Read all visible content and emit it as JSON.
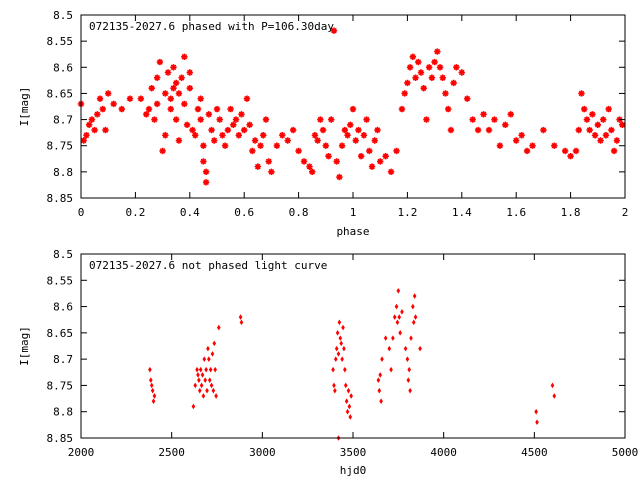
{
  "chart_data": [
    {
      "type": "scatter",
      "title": "072135-2027.6 phased with P=106.30day",
      "xlabel": "phase",
      "ylabel": "I[mag]",
      "xlim": [
        0,
        2
      ],
      "ylim": [
        8.5,
        8.85
      ],
      "y_inverted": true,
      "x_ticks": [
        0,
        0.2,
        0.4,
        0.6,
        0.8,
        1,
        1.2,
        1.4,
        1.6,
        1.8,
        2
      ],
      "x_tick_labels": [
        "0",
        "0.2",
        "0.4",
        "0.6",
        "0.8",
        "1",
        "1.2",
        "1.4",
        "1.6",
        "1.8",
        "2"
      ],
      "y_ticks": [
        8.5,
        8.55,
        8.6,
        8.65,
        8.7,
        8.75,
        8.8,
        8.85
      ],
      "y_tick_labels": [
        "8.5",
        "8.55",
        "8.6",
        "8.65",
        "8.7",
        "8.75",
        "8.8",
        "8.85"
      ],
      "marker_color": "#ff0000",
      "marker": "star",
      "points": [
        [
          0.0,
          8.67
        ],
        [
          0.01,
          8.74
        ],
        [
          0.02,
          8.73
        ],
        [
          0.03,
          8.71
        ],
        [
          0.04,
          8.7
        ],
        [
          0.05,
          8.72
        ],
        [
          0.06,
          8.69
        ],
        [
          0.07,
          8.66
        ],
        [
          0.08,
          8.68
        ],
        [
          0.09,
          8.72
        ],
        [
          0.1,
          8.65
        ],
        [
          0.12,
          8.67
        ],
        [
          0.15,
          8.68
        ],
        [
          0.18,
          8.66
        ],
        [
          0.22,
          8.66
        ],
        [
          0.24,
          8.69
        ],
        [
          0.25,
          8.68
        ],
        [
          0.26,
          8.64
        ],
        [
          0.27,
          8.7
        ],
        [
          0.28,
          8.67
        ],
        [
          0.28,
          8.62
        ],
        [
          0.29,
          8.59
        ],
        [
          0.3,
          8.76
        ],
        [
          0.31,
          8.73
        ],
        [
          0.31,
          8.65
        ],
        [
          0.32,
          8.61
        ],
        [
          0.33,
          8.66
        ],
        [
          0.33,
          8.68
        ],
        [
          0.34,
          8.64
        ],
        [
          0.34,
          8.6
        ],
        [
          0.35,
          8.63
        ],
        [
          0.35,
          8.7
        ],
        [
          0.36,
          8.74
        ],
        [
          0.36,
          8.65
        ],
        [
          0.37,
          8.62
        ],
        [
          0.38,
          8.58
        ],
        [
          0.38,
          8.67
        ],
        [
          0.39,
          8.71
        ],
        [
          0.4,
          8.64
        ],
        [
          0.4,
          8.61
        ],
        [
          0.41,
          8.72
        ],
        [
          0.42,
          8.73
        ],
        [
          0.43,
          8.68
        ],
        [
          0.44,
          8.66
        ],
        [
          0.44,
          8.7
        ],
        [
          0.45,
          8.75
        ],
        [
          0.45,
          8.78
        ],
        [
          0.46,
          8.8
        ],
        [
          0.46,
          8.82
        ],
        [
          0.47,
          8.69
        ],
        [
          0.48,
          8.72
        ],
        [
          0.49,
          8.74
        ],
        [
          0.5,
          8.68
        ],
        [
          0.51,
          8.7
        ],
        [
          0.52,
          8.73
        ],
        [
          0.53,
          8.75
        ],
        [
          0.54,
          8.72
        ],
        [
          0.55,
          8.68
        ],
        [
          0.56,
          8.71
        ],
        [
          0.57,
          8.7
        ],
        [
          0.58,
          8.73
        ],
        [
          0.59,
          8.69
        ],
        [
          0.6,
          8.72
        ],
        [
          0.61,
          8.66
        ],
        [
          0.62,
          8.71
        ],
        [
          0.63,
          8.76
        ],
        [
          0.64,
          8.74
        ],
        [
          0.65,
          8.79
        ],
        [
          0.66,
          8.75
        ],
        [
          0.67,
          8.73
        ],
        [
          0.68,
          8.7
        ],
        [
          0.69,
          8.78
        ],
        [
          0.7,
          8.8
        ],
        [
          0.72,
          8.75
        ],
        [
          0.74,
          8.73
        ],
        [
          0.76,
          8.74
        ],
        [
          0.78,
          8.72
        ],
        [
          0.8,
          8.76
        ],
        [
          0.82,
          8.78
        ],
        [
          0.84,
          8.79
        ],
        [
          0.85,
          8.8
        ],
        [
          0.86,
          8.73
        ],
        [
          0.87,
          8.74
        ],
        [
          0.88,
          8.7
        ],
        [
          0.89,
          8.72
        ],
        [
          0.9,
          8.75
        ],
        [
          0.91,
          8.77
        ],
        [
          0.92,
          8.7
        ],
        [
          0.93,
          8.53
        ],
        [
          0.94,
          8.78
        ],
        [
          0.95,
          8.81
        ],
        [
          0.96,
          8.75
        ],
        [
          0.97,
          8.72
        ],
        [
          0.98,
          8.73
        ],
        [
          0.99,
          8.71
        ],
        [
          1.0,
          8.68
        ],
        [
          1.01,
          8.74
        ],
        [
          1.02,
          8.72
        ],
        [
          1.03,
          8.77
        ],
        [
          1.04,
          8.73
        ],
        [
          1.05,
          8.7
        ],
        [
          1.06,
          8.76
        ],
        [
          1.07,
          8.79
        ],
        [
          1.08,
          8.74
        ],
        [
          1.09,
          8.72
        ],
        [
          1.1,
          8.78
        ],
        [
          1.12,
          8.77
        ],
        [
          1.14,
          8.8
        ],
        [
          1.16,
          8.76
        ],
        [
          1.18,
          8.68
        ],
        [
          1.19,
          8.65
        ],
        [
          1.2,
          8.63
        ],
        [
          1.21,
          8.6
        ],
        [
          1.22,
          8.58
        ],
        [
          1.23,
          8.62
        ],
        [
          1.24,
          8.59
        ],
        [
          1.25,
          8.61
        ],
        [
          1.26,
          8.64
        ],
        [
          1.27,
          8.7
        ],
        [
          1.28,
          8.6
        ],
        [
          1.29,
          8.62
        ],
        [
          1.3,
          8.59
        ],
        [
          1.31,
          8.57
        ],
        [
          1.32,
          8.6
        ],
        [
          1.33,
          8.62
        ],
        [
          1.34,
          8.65
        ],
        [
          1.35,
          8.68
        ],
        [
          1.36,
          8.72
        ],
        [
          1.37,
          8.63
        ],
        [
          1.38,
          8.6
        ],
        [
          1.4,
          8.61
        ],
        [
          1.42,
          8.66
        ],
        [
          1.44,
          8.7
        ],
        [
          1.46,
          8.72
        ],
        [
          1.48,
          8.69
        ],
        [
          1.5,
          8.72
        ],
        [
          1.52,
          8.7
        ],
        [
          1.54,
          8.75
        ],
        [
          1.56,
          8.71
        ],
        [
          1.58,
          8.69
        ],
        [
          1.6,
          8.74
        ],
        [
          1.62,
          8.73
        ],
        [
          1.64,
          8.76
        ],
        [
          1.66,
          8.75
        ],
        [
          1.7,
          8.72
        ],
        [
          1.74,
          8.75
        ],
        [
          1.78,
          8.76
        ],
        [
          1.8,
          8.77
        ],
        [
          1.82,
          8.76
        ],
        [
          1.83,
          8.72
        ],
        [
          1.84,
          8.65
        ],
        [
          1.85,
          8.68
        ],
        [
          1.86,
          8.7
        ],
        [
          1.87,
          8.72
        ],
        [
          1.88,
          8.69
        ],
        [
          1.89,
          8.73
        ],
        [
          1.9,
          8.71
        ],
        [
          1.91,
          8.74
        ],
        [
          1.92,
          8.7
        ],
        [
          1.93,
          8.73
        ],
        [
          1.94,
          8.68
        ],
        [
          1.95,
          8.72
        ],
        [
          1.96,
          8.76
        ],
        [
          1.97,
          8.74
        ],
        [
          1.98,
          8.7
        ],
        [
          1.99,
          8.71
        ]
      ]
    },
    {
      "type": "scatter",
      "title": "072135-2027.6 not phased light curve",
      "xlabel": "hjd0",
      "ylabel": "I[mag]",
      "xlim": [
        2000,
        5000
      ],
      "ylim": [
        8.5,
        8.85
      ],
      "y_inverted": true,
      "x_ticks": [
        2000,
        2500,
        3000,
        3500,
        4000,
        4500,
        5000
      ],
      "x_tick_labels": [
        "2000",
        "2500",
        "3000",
        "3500",
        "4000",
        "4500",
        "5000"
      ],
      "y_ticks": [
        8.5,
        8.55,
        8.6,
        8.65,
        8.7,
        8.75,
        8.8,
        8.85
      ],
      "y_tick_labels": [
        "8.5",
        "8.55",
        "8.6",
        "8.65",
        "8.7",
        "8.75",
        "8.8",
        "8.85"
      ],
      "marker_color": "#ff0000",
      "marker": "diamond",
      "points": [
        [
          2380,
          8.72
        ],
        [
          2385,
          8.74
        ],
        [
          2390,
          8.75
        ],
        [
          2395,
          8.76
        ],
        [
          2400,
          8.78
        ],
        [
          2405,
          8.77
        ],
        [
          2620,
          8.79
        ],
        [
          2630,
          8.75
        ],
        [
          2640,
          8.72
        ],
        [
          2645,
          8.73
        ],
        [
          2650,
          8.74
        ],
        [
          2655,
          8.76
        ],
        [
          2660,
          8.72
        ],
        [
          2665,
          8.75
        ],
        [
          2670,
          8.73
        ],
        [
          2675,
          8.77
        ],
        [
          2680,
          8.7
        ],
        [
          2685,
          8.74
        ],
        [
          2690,
          8.72
        ],
        [
          2695,
          8.76
        ],
        [
          2700,
          8.68
        ],
        [
          2705,
          8.7
        ],
        [
          2710,
          8.74
        ],
        [
          2715,
          8.72
        ],
        [
          2720,
          8.75
        ],
        [
          2725,
          8.69
        ],
        [
          2730,
          8.76
        ],
        [
          2735,
          8.67
        ],
        [
          2740,
          8.72
        ],
        [
          2745,
          8.77
        ],
        [
          2760,
          8.64
        ],
        [
          2880,
          8.62
        ],
        [
          2885,
          8.63
        ],
        [
          3390,
          8.72
        ],
        [
          3395,
          8.75
        ],
        [
          3400,
          8.76
        ],
        [
          3405,
          8.7
        ],
        [
          3410,
          8.68
        ],
        [
          3415,
          8.65
        ],
        [
          3420,
          8.69
        ],
        [
          3425,
          8.63
        ],
        [
          3430,
          8.66
        ],
        [
          3435,
          8.67
        ],
        [
          3440,
          8.7
        ],
        [
          3445,
          8.64
        ],
        [
          3450,
          8.68
        ],
        [
          3455,
          8.72
        ],
        [
          3460,
          8.75
        ],
        [
          3465,
          8.78
        ],
        [
          3470,
          8.8
        ],
        [
          3475,
          8.76
        ],
        [
          3480,
          8.79
        ],
        [
          3485,
          8.81
        ],
        [
          3490,
          8.77
        ],
        [
          3420,
          8.85
        ],
        [
          3640,
          8.74
        ],
        [
          3645,
          8.76
        ],
        [
          3650,
          8.73
        ],
        [
          3655,
          8.78
        ],
        [
          3660,
          8.7
        ],
        [
          3680,
          8.66
        ],
        [
          3700,
          8.68
        ],
        [
          3710,
          8.72
        ],
        [
          3720,
          8.66
        ],
        [
          3730,
          8.62
        ],
        [
          3740,
          8.6
        ],
        [
          3745,
          8.63
        ],
        [
          3750,
          8.57
        ],
        [
          3755,
          8.62
        ],
        [
          3760,
          8.65
        ],
        [
          3770,
          8.61
        ],
        [
          3790,
          8.68
        ],
        [
          3800,
          8.7
        ],
        [
          3805,
          8.74
        ],
        [
          3810,
          8.72
        ],
        [
          3815,
          8.76
        ],
        [
          3820,
          8.66
        ],
        [
          3830,
          8.6
        ],
        [
          3835,
          8.63
        ],
        [
          3840,
          8.58
        ],
        [
          3845,
          8.62
        ],
        [
          3870,
          8.68
        ],
        [
          4510,
          8.8
        ],
        [
          4515,
          8.82
        ],
        [
          4600,
          8.75
        ],
        [
          4610,
          8.77
        ]
      ]
    }
  ]
}
